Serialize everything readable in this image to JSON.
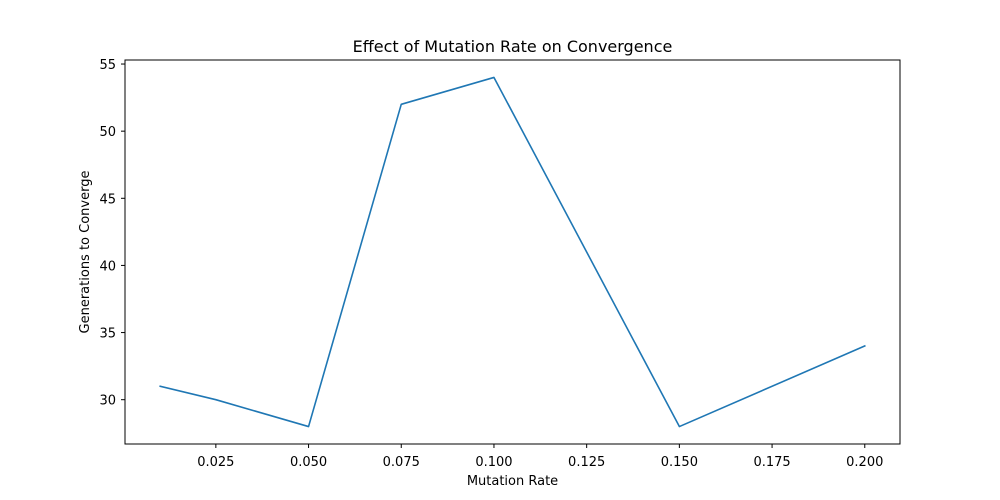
{
  "chart_data": {
    "type": "line",
    "title": "Effect of Mutation Rate on Convergence",
    "xlabel": "Mutation Rate",
    "ylabel": "Generations to Converge",
    "x": [
      0.01,
      0.025,
      0.05,
      0.075,
      0.1,
      0.125,
      0.15,
      0.2
    ],
    "series": [
      {
        "values": [
          31,
          30,
          28,
          52,
          54,
          41,
          28,
          34
        ]
      }
    ],
    "xlim": [
      0.0005,
      0.2095
    ],
    "ylim": [
      26.7,
      55.3
    ],
    "xticks": [
      0.025,
      0.05,
      0.075,
      0.1,
      0.125,
      0.15,
      0.175,
      0.2
    ],
    "xtick_labels": [
      "0.025",
      "0.050",
      "0.075",
      "0.100",
      "0.125",
      "0.150",
      "0.175",
      "0.200"
    ],
    "yticks": [
      30,
      35,
      40,
      45,
      50,
      55
    ],
    "ytick_labels": [
      "30",
      "35",
      "40",
      "45",
      "50",
      "55"
    ],
    "grid": false,
    "legend": "none",
    "line_color": "#1f77b4"
  }
}
